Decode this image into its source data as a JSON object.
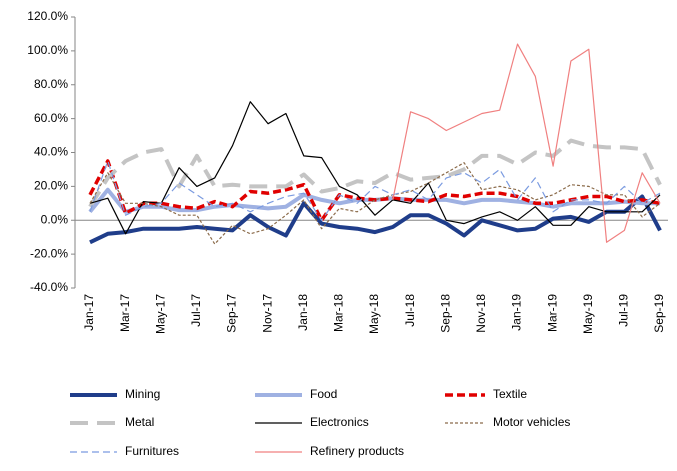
{
  "chart_data": {
    "type": "line",
    "categories": [
      "Jan-17",
      null,
      "Mar-17",
      null,
      "May-17",
      null,
      "Jul-17",
      null,
      "Sep-17",
      null,
      "Nov-17",
      null,
      "Jan-18",
      null,
      "Mar-18",
      null,
      "May-18",
      null,
      "Jul-18",
      null,
      "Sep-18",
      null,
      "Nov-18",
      null,
      "Jan-19",
      null,
      "Mar-19",
      null,
      "May-19",
      null,
      "Jul-19",
      null,
      "Sep-19"
    ],
    "ylim": [
      -40,
      120
    ],
    "yticks": [
      {
        "value": -40,
        "label": "-40.0%"
      },
      {
        "value": -20,
        "label": "-20.0%"
      },
      {
        "value": 0,
        "label": "0.0%"
      },
      {
        "value": 20,
        "label": "20.0%"
      },
      {
        "value": 40,
        "label": "40.0%"
      },
      {
        "value": 60,
        "label": "60.0%"
      },
      {
        "value": 80,
        "label": "80.0%"
      },
      {
        "value": 100,
        "label": "100.0%"
      },
      {
        "value": 120,
        "label": "120.0%"
      }
    ],
    "legend": "bottom",
    "series": [
      {
        "name": "Mining",
        "color": "#1f3d8a",
        "width": 4,
        "dash": "none",
        "values": [
          -13,
          -8,
          -7,
          -5,
          -5,
          -5,
          -4,
          -5,
          -6,
          3,
          -4,
          -9,
          10,
          -2,
          -4,
          -5,
          -7,
          -4,
          3,
          3,
          -2,
          -9,
          0,
          -3,
          -6,
          -5,
          1,
          2,
          -1,
          5,
          5,
          14,
          -6
        ]
      },
      {
        "name": "Food",
        "color": "#9fb1e2",
        "width": 4,
        "dash": "none",
        "values": [
          5,
          18,
          5,
          8,
          8,
          6,
          6,
          8,
          9,
          8,
          7,
          8,
          15,
          12,
          10,
          12,
          12,
          13,
          12,
          12,
          12,
          10,
          12,
          12,
          11,
          10,
          8,
          10,
          10,
          10,
          11,
          10,
          10
        ]
      },
      {
        "name": "Textile",
        "color": "#e00000",
        "width": 3.5,
        "dash": "8,4",
        "values": [
          15,
          35,
          4,
          10,
          10,
          8,
          7,
          11,
          8,
          17,
          16,
          18,
          21,
          0,
          15,
          13,
          12,
          13,
          12,
          11,
          15,
          14,
          16,
          16,
          14,
          10,
          10,
          12,
          14,
          14,
          11,
          12,
          10
        ]
      },
      {
        "name": "Metal",
        "color": "#c4c4c4",
        "width": 4,
        "dash": "18,9",
        "values": [
          8,
          25,
          35,
          40,
          42,
          20,
          38,
          20,
          21,
          20,
          20,
          20,
          27,
          17,
          19,
          23,
          22,
          28,
          24,
          25,
          26,
          30,
          38,
          38,
          33,
          40,
          38,
          47,
          44,
          43,
          43,
          42,
          21
        ]
      },
      {
        "name": "Electronics",
        "color": "#000000",
        "width": 1.2,
        "dash": "none",
        "values": [
          10,
          13,
          -8,
          11,
          10,
          31,
          20,
          25,
          44,
          70,
          57,
          63,
          38,
          37,
          20,
          15,
          3,
          12,
          10,
          22,
          0,
          -2,
          2,
          5,
          0,
          8,
          -3,
          -3,
          8,
          5,
          5,
          5,
          15
        ]
      },
      {
        "name": "Motor vehicles",
        "color": "#8b6b4a",
        "width": 1.2,
        "dash": "3,2",
        "values": [
          10,
          28,
          10,
          10,
          8,
          3,
          3,
          -14,
          -3,
          -8,
          -5,
          3,
          12,
          -5,
          7,
          5,
          12,
          15,
          17,
          22,
          28,
          34,
          18,
          20,
          18,
          12,
          15,
          21,
          20,
          15,
          15,
          2,
          10
        ]
      },
      {
        "name": "Furnitures",
        "color": "#7b9be0",
        "width": 1.2,
        "dash": "7,4",
        "values": [
          5,
          35,
          3,
          8,
          10,
          22,
          15,
          8,
          10,
          5,
          10,
          14,
          16,
          0,
          15,
          10,
          20,
          15,
          18,
          12,
          25,
          28,
          22,
          30,
          12,
          25,
          5,
          12,
          12,
          10,
          20,
          10,
          16
        ]
      },
      {
        "name": "Refinery products",
        "color": "#f08080",
        "width": 1.2,
        "dash": "none",
        "values": [
          null,
          null,
          null,
          null,
          null,
          null,
          null,
          null,
          null,
          null,
          null,
          null,
          null,
          null,
          null,
          null,
          null,
          12,
          64,
          60,
          53,
          58,
          63,
          65,
          104,
          85,
          32,
          94,
          101,
          -13,
          -6,
          28,
          10
        ]
      }
    ]
  }
}
